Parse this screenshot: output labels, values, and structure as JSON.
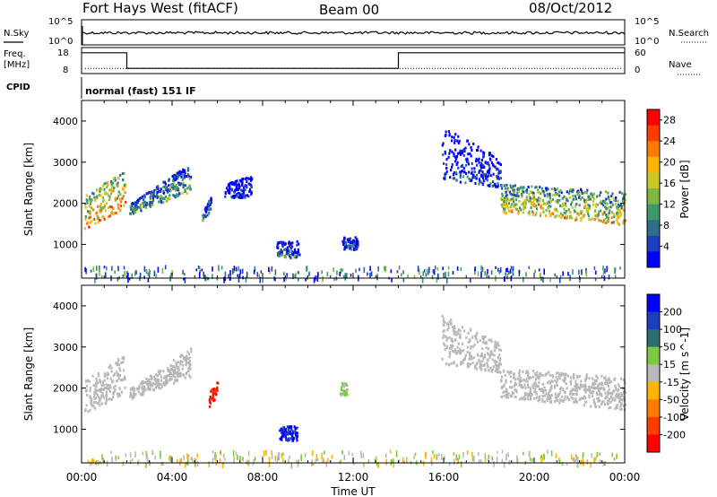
{
  "header": {
    "station": "Fort Hays West (fitACF)",
    "beam": "Beam 00",
    "date": "08/Oct/2012"
  },
  "noise_panel": {
    "left_label": "N.Sky",
    "left_ticks": [
      "10^5",
      "10^0"
    ],
    "right_label": "N.Search",
    "right_ticks": [
      "10^5",
      "10^0"
    ],
    "trace_level": 0.48
  },
  "freq_panel": {
    "left_label_line1": "Freq.",
    "left_label_line2": "[MHz]",
    "left_ticks": [
      "18",
      "8"
    ],
    "right_label": "Nave",
    "right_ticks": [
      "60",
      "0"
    ],
    "segments": [
      {
        "from": "00:00",
        "to": "02:00",
        "nave_level": 0.8
      },
      {
        "from": "02:00",
        "to": "14:00",
        "nave_level": 0.2
      },
      {
        "from": "14:00",
        "to": "24:00",
        "nave_level": 0.8
      }
    ],
    "freq_level": 0.2
  },
  "cpid": {
    "label": "CPID",
    "mode": "normal (fast) 151 IF"
  },
  "time_axis": {
    "title": "Time UT",
    "ticks": [
      "00:00",
      "04:00",
      "08:00",
      "12:00",
      "16:00",
      "20:00",
      "00:00"
    ],
    "range_hours": [
      0,
      24
    ]
  },
  "chart_data": [
    {
      "type": "heatmap",
      "name": "power",
      "ylabel": "Slant Range [km]",
      "yticks": [
        "1000",
        "2000",
        "3000",
        "4000"
      ],
      "ylim": [
        180,
        4500
      ],
      "colorbar": {
        "label": "Power [dB]",
        "ticks": [
          "4",
          "8",
          "12",
          "16",
          "20",
          "24",
          "28"
        ],
        "range": [
          0,
          30
        ],
        "colors": [
          "#0000ff",
          "#1a3fbf",
          "#2d6e8a",
          "#3d9a6a",
          "#7cb83e",
          "#c8c828",
          "#ffb400",
          "#ff7a00",
          "#ff3c00",
          "#ff0000"
        ]
      },
      "echo_regions": [
        {
          "t0": 0.1,
          "t1": 1.9,
          "r_lo_start": 1400,
          "r_lo_end": 1900,
          "r_hi_start": 2200,
          "r_hi_end": 2850,
          "power": 22
        },
        {
          "t0": 2.1,
          "t1": 4.8,
          "r_lo_start": 1750,
          "r_lo_end": 2300,
          "r_hi_start": 2000,
          "r_hi_end": 3000,
          "power": 12
        },
        {
          "t0": 5.3,
          "t1": 5.7,
          "r_lo_start": 1500,
          "r_lo_end": 1900,
          "r_hi_start": 1800,
          "r_hi_end": 2200,
          "power": 10
        },
        {
          "t0": 6.3,
          "t1": 7.5,
          "r_lo_start": 2100,
          "r_lo_end": 2200,
          "r_hi_start": 2500,
          "r_hi_end": 2700,
          "power": 4
        },
        {
          "t0": 8.6,
          "t1": 9.6,
          "r_lo_start": 700,
          "r_lo_end": 700,
          "r_hi_start": 1100,
          "r_hi_end": 1100,
          "power": 8
        },
        {
          "t0": 11.5,
          "t1": 12.2,
          "r_lo_start": 900,
          "r_lo_end": 900,
          "r_hi_start": 1200,
          "r_hi_end": 1200,
          "power": 6
        },
        {
          "t0": 15.9,
          "t1": 18.5,
          "r_lo_start": 2600,
          "r_lo_end": 2400,
          "r_hi_start": 3900,
          "r_hi_end": 3100,
          "power": 5
        },
        {
          "t0": 18.5,
          "t1": 24.0,
          "r_lo_start": 1800,
          "r_lo_end": 1500,
          "r_hi_start": 2500,
          "r_hi_end": 2300,
          "power": 18
        }
      ],
      "ground_scatter_band": [
        180,
        500
      ]
    },
    {
      "type": "heatmap",
      "name": "velocity",
      "ylabel": "Slant Range [km]",
      "yticks": [
        "1000",
        "2000",
        "3000",
        "4000"
      ],
      "ylim": [
        180,
        4500
      ],
      "colorbar": {
        "label": "Velocity [m s^-1]",
        "ticks": [
          "200",
          "100",
          "50",
          "15",
          "-15",
          "-50",
          "-100",
          "-200"
        ],
        "range": [
          -250,
          250
        ],
        "colors": [
          "#0000ff",
          "#1a3fbf",
          "#2d6e6e",
          "#7cc83e",
          "#b8b8b8",
          "#ffb400",
          "#ff7a00",
          "#ff3c00",
          "#ff0000"
        ]
      },
      "echo_regions": [
        {
          "t0": 0.1,
          "t1": 1.9,
          "r_lo_start": 1400,
          "r_lo_end": 1900,
          "r_hi_start": 2200,
          "r_hi_end": 2850,
          "velocity": 0
        },
        {
          "t0": 2.1,
          "t1": 4.8,
          "r_lo_start": 1750,
          "r_lo_end": 2300,
          "r_hi_start": 2000,
          "r_hi_end": 3000,
          "velocity": 0
        },
        {
          "t0": 5.6,
          "t1": 6.0,
          "r_lo_start": 1550,
          "r_lo_end": 1800,
          "r_hi_start": 1900,
          "r_hi_end": 2200,
          "velocity": -200
        },
        {
          "t0": 8.7,
          "t1": 9.5,
          "r_lo_start": 750,
          "r_lo_end": 750,
          "r_hi_start": 1100,
          "r_hi_end": 1100,
          "velocity": 200
        },
        {
          "t0": 11.4,
          "t1": 11.7,
          "r_lo_start": 1850,
          "r_lo_end": 1850,
          "r_hi_start": 2150,
          "r_hi_end": 2150,
          "velocity": 40
        },
        {
          "t0": 15.9,
          "t1": 18.5,
          "r_lo_start": 2600,
          "r_lo_end": 2400,
          "r_hi_start": 3800,
          "r_hi_end": 3100,
          "velocity": 0
        },
        {
          "t0": 18.5,
          "t1": 24.0,
          "r_lo_start": 1800,
          "r_lo_end": 1500,
          "r_hi_start": 2500,
          "r_hi_end": 2300,
          "velocity": 0
        }
      ],
      "ground_scatter_band": [
        180,
        500
      ]
    }
  ]
}
